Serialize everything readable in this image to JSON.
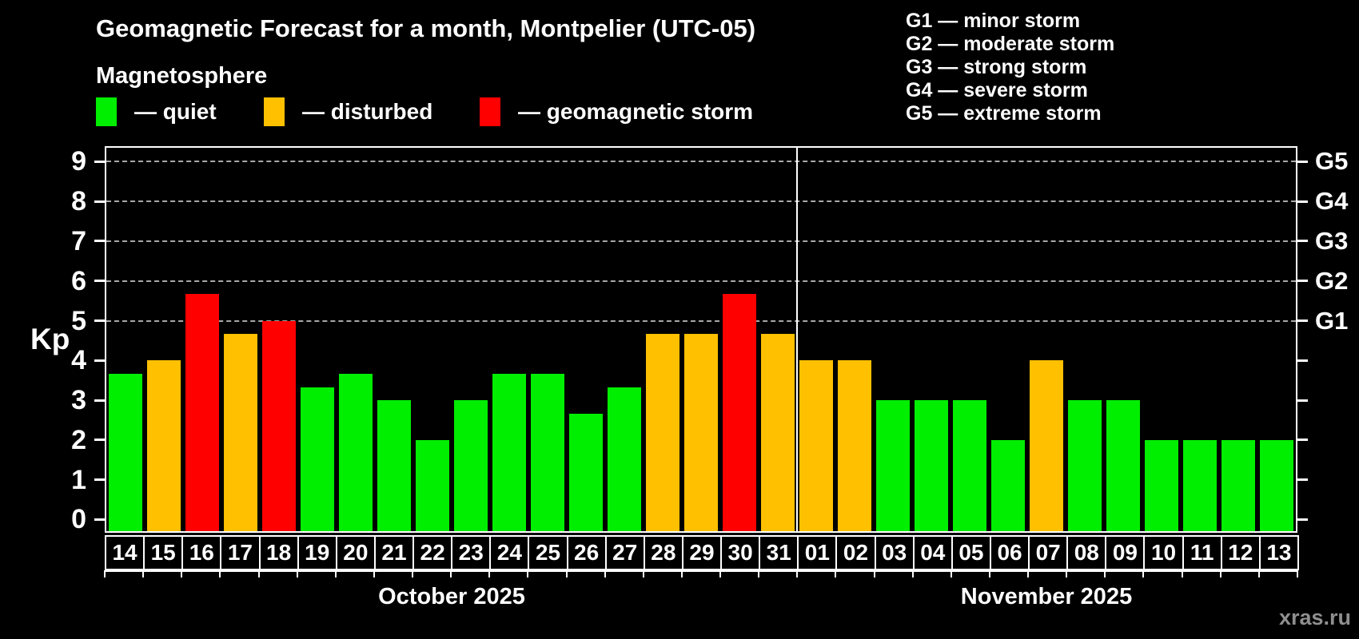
{
  "header": {
    "title": "Geomagnetic Forecast for a month, Montpelier (UTC-05)",
    "subtitle": "Magnetosphere"
  },
  "legend": {
    "items": [
      {
        "key": "quiet",
        "label": "— quiet",
        "color": "#00ee00"
      },
      {
        "key": "disturbed",
        "label": "— disturbed",
        "color": "#ffc000"
      },
      {
        "key": "storm",
        "label": "— geomagnetic storm",
        "color": "#ff0000"
      }
    ]
  },
  "storm_scale": {
    "lines": [
      "G1 — minor storm",
      "G2 — moderate storm",
      "G3 — strong storm",
      "G4 — severe storm",
      "G5 — extreme storm"
    ]
  },
  "watermark": "xras.ru",
  "chart_data": {
    "type": "bar",
    "title": "Geomagnetic Forecast for a month, Montpelier (UTC-05)",
    "ylabel": "Kp",
    "ylim": [
      0,
      9
    ],
    "yticks_left": [
      "0",
      "1",
      "2",
      "3",
      "4",
      "5",
      "6",
      "7",
      "8",
      "9"
    ],
    "right_axis": [
      {
        "kp": 5,
        "label": "G1"
      },
      {
        "kp": 6,
        "label": "G2"
      },
      {
        "kp": 7,
        "label": "G3"
      },
      {
        "kp": 8,
        "label": "G4"
      },
      {
        "kp": 9,
        "label": "G5"
      }
    ],
    "gridlines_kp": [
      5,
      6,
      7,
      8,
      9
    ],
    "grid": "dashed horizontal at G-storm levels only",
    "status_colors": {
      "quiet": "#00ee00",
      "disturbed": "#ffc000",
      "storm": "#ff0000"
    },
    "months": [
      {
        "label": "October 2025",
        "days": [
          {
            "day": "14",
            "kp": 3.67,
            "status": "quiet"
          },
          {
            "day": "15",
            "kp": 4.0,
            "status": "disturbed"
          },
          {
            "day": "16",
            "kp": 5.67,
            "status": "storm"
          },
          {
            "day": "17",
            "kp": 4.67,
            "status": "disturbed"
          },
          {
            "day": "18",
            "kp": 5.0,
            "status": "storm"
          },
          {
            "day": "19",
            "kp": 3.33,
            "status": "quiet"
          },
          {
            "day": "20",
            "kp": 3.67,
            "status": "quiet"
          },
          {
            "day": "21",
            "kp": 3.0,
            "status": "quiet"
          },
          {
            "day": "22",
            "kp": 2.0,
            "status": "quiet"
          },
          {
            "day": "23",
            "kp": 3.0,
            "status": "quiet"
          },
          {
            "day": "24",
            "kp": 3.67,
            "status": "quiet"
          },
          {
            "day": "25",
            "kp": 3.67,
            "status": "quiet"
          },
          {
            "day": "26",
            "kp": 2.67,
            "status": "quiet"
          },
          {
            "day": "27",
            "kp": 3.33,
            "status": "quiet"
          },
          {
            "day": "28",
            "kp": 4.67,
            "status": "disturbed"
          },
          {
            "day": "29",
            "kp": 4.67,
            "status": "disturbed"
          },
          {
            "day": "30",
            "kp": 5.67,
            "status": "storm"
          },
          {
            "day": "31",
            "kp": 4.67,
            "status": "disturbed"
          }
        ]
      },
      {
        "label": "November 2025",
        "days": [
          {
            "day": "01",
            "kp": 4.0,
            "status": "disturbed"
          },
          {
            "day": "02",
            "kp": 4.0,
            "status": "disturbed"
          },
          {
            "day": "03",
            "kp": 3.0,
            "status": "quiet"
          },
          {
            "day": "04",
            "kp": 3.0,
            "status": "quiet"
          },
          {
            "day": "05",
            "kp": 3.0,
            "status": "quiet"
          },
          {
            "day": "06",
            "kp": 2.0,
            "status": "quiet"
          },
          {
            "day": "07",
            "kp": 4.0,
            "status": "disturbed"
          },
          {
            "day": "08",
            "kp": 3.0,
            "status": "quiet"
          },
          {
            "day": "09",
            "kp": 3.0,
            "status": "quiet"
          },
          {
            "day": "10",
            "kp": 2.0,
            "status": "quiet"
          },
          {
            "day": "11",
            "kp": 2.0,
            "status": "quiet"
          },
          {
            "day": "12",
            "kp": 2.0,
            "status": "quiet"
          },
          {
            "day": "13",
            "kp": 2.0,
            "status": "quiet"
          }
        ]
      }
    ]
  }
}
